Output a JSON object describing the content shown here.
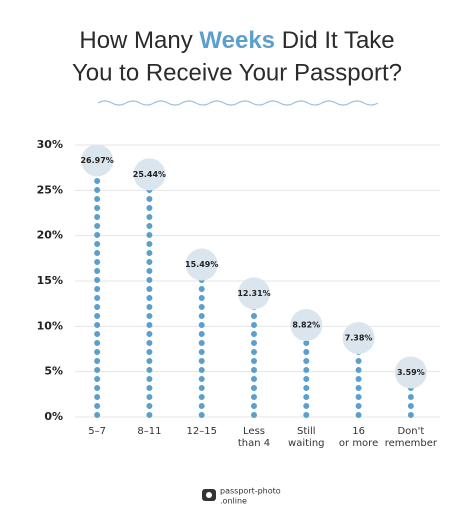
{
  "chart_data": {
    "type": "lollipop",
    "title": [
      "How Many",
      "Weeks",
      "Did It Take",
      "You to Receive Your Passport?"
    ],
    "categories": [
      [
        "5–7"
      ],
      [
        "8–11"
      ],
      [
        "12–15"
      ],
      [
        "Less",
        "than 4"
      ],
      [
        "Still",
        "waiting"
      ],
      [
        "16",
        "or more"
      ],
      [
        "Don't",
        "remember"
      ]
    ],
    "values": [
      26.97,
      25.44,
      15.49,
      12.31,
      8.82,
      7.38,
      3.59
    ],
    "value_labels": [
      "26.97%",
      "25.44%",
      "15.49%",
      "12.31%",
      "8.82%",
      "7.38%",
      "3.59%"
    ],
    "color": "#5b9fce",
    "ylim": [
      0,
      30
    ],
    "yticks": [
      {
        "value": 0,
        "label": "0%"
      },
      {
        "value": 5,
        "label": "5%"
      },
      {
        "value": 10,
        "label": "10%"
      },
      {
        "value": 15,
        "label": "15%"
      },
      {
        "value": 20,
        "label": "20%"
      },
      {
        "value": 25,
        "label": "25%"
      },
      {
        "value": 30,
        "label": "30%"
      }
    ],
    "grid": true,
    "brand": [
      "passport-photo",
      ".online"
    ]
  }
}
